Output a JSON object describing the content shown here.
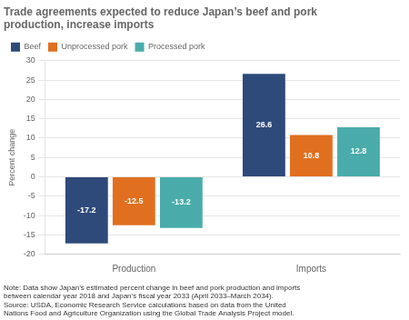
{
  "chart_data": {
    "type": "bar",
    "title": [
      "Trade agreements expected to reduce Japan’s beef and pork",
      "production, increase imports"
    ],
    "y_label": "Percent change",
    "categories": [
      "Production",
      "Imports"
    ],
    "series": [
      {
        "name": "Beef",
        "color": "#2e4a7a",
        "values": [
          -17.2,
          26.6
        ]
      },
      {
        "name": "Unprocessed pork",
        "color": "#e07020",
        "values": [
          -12.5,
          10.8
        ]
      },
      {
        "name": "Processed pork",
        "color": "#4aacaa",
        "values": [
          -13.2,
          12.8
        ]
      }
    ],
    "ylim": [
      -20,
      30
    ],
    "yticks": [
      -20,
      -15,
      -10,
      -5,
      0,
      5,
      10,
      15,
      20,
      25,
      30
    ],
    "grid": true,
    "legend": "upper left",
    "data_labels": true,
    "annotations": [
      "Note: Data show Japan’s estimated percent change in beef and pork production and imports",
      "between calendar year 2018 and Japan’s fiscal year 2033 (April 2033–March 2034).",
      "Source: USDA, Economic Research Service calculations based on data from the United",
      "Nations Food and Agriculture Organization using the Global Trade Analysis Project model."
    ]
  }
}
